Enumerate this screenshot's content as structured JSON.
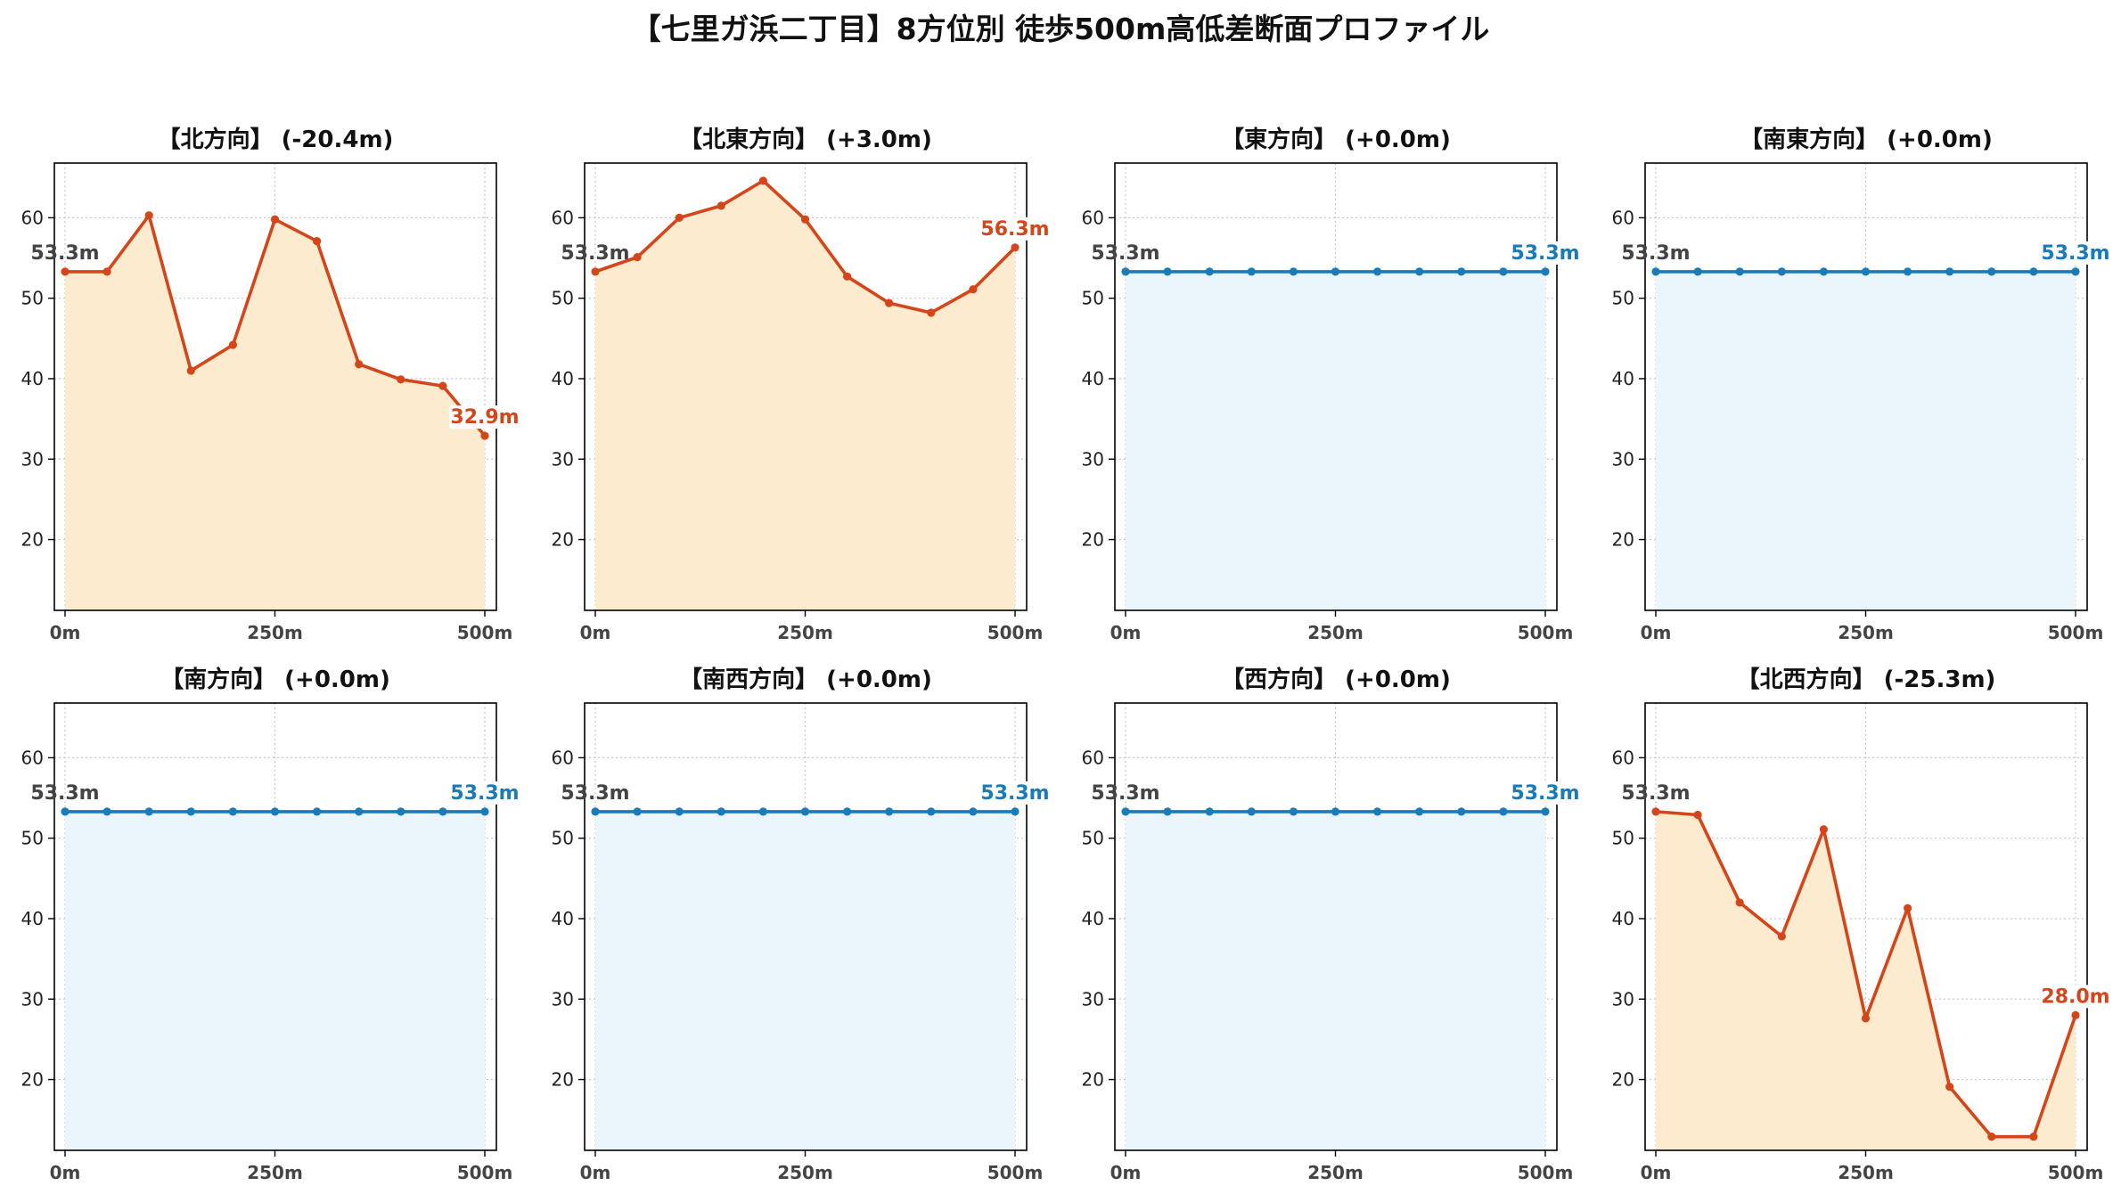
{
  "title": "【七里ガ浜二丁目】8方位別 徒歩500m高低差断面プロファイル",
  "colors": {
    "change_line": "#d4461a",
    "change_fill": "#fdebd0",
    "flat_line": "#1a7bb9",
    "flat_fill": "#eaf6fb",
    "start_label": "#444444"
  },
  "chart_data": [
    {
      "type": "area",
      "title": "【北方向】 (-20.4m)",
      "x": [
        0,
        50,
        100,
        150,
        200,
        250,
        300,
        350,
        400,
        450,
        500
      ],
      "y": [
        53.3,
        53.3,
        60.3,
        41.0,
        44.2,
        59.8,
        57.1,
        41.8,
        39.9,
        39.1,
        32.9
      ],
      "xticks": [
        "0m",
        "250m",
        "500m"
      ],
      "yticks": [
        20,
        30,
        40,
        50,
        60
      ],
      "ylim": [
        11.2,
        66.8
      ],
      "start_label": "53.3m",
      "end_label": "32.9m",
      "style": "change",
      "grid": true
    },
    {
      "type": "area",
      "title": "【北東方向】 (+3.0m)",
      "x": [
        0,
        50,
        100,
        150,
        200,
        250,
        300,
        350,
        400,
        450,
        500
      ],
      "y": [
        53.3,
        55.1,
        60.0,
        61.5,
        64.6,
        59.8,
        52.7,
        49.4,
        48.2,
        51.1,
        56.3
      ],
      "xticks": [
        "0m",
        "250m",
        "500m"
      ],
      "yticks": [
        20,
        30,
        40,
        50,
        60
      ],
      "ylim": [
        11.2,
        66.8
      ],
      "start_label": "53.3m",
      "end_label": "56.3m",
      "style": "change",
      "grid": true
    },
    {
      "type": "area",
      "title": "【東方向】 (+0.0m)",
      "x": [
        0,
        50,
        100,
        150,
        200,
        250,
        300,
        350,
        400,
        450,
        500
      ],
      "y": [
        53.3,
        53.3,
        53.3,
        53.3,
        53.3,
        53.3,
        53.3,
        53.3,
        53.3,
        53.3,
        53.3
      ],
      "xticks": [
        "0m",
        "250m",
        "500m"
      ],
      "yticks": [
        20,
        30,
        40,
        50,
        60
      ],
      "ylim": [
        11.2,
        66.8
      ],
      "start_label": "53.3m",
      "end_label": "53.3m",
      "style": "flat",
      "grid": true
    },
    {
      "type": "area",
      "title": "【南東方向】 (+0.0m)",
      "x": [
        0,
        50,
        100,
        150,
        200,
        250,
        300,
        350,
        400,
        450,
        500
      ],
      "y": [
        53.3,
        53.3,
        53.3,
        53.3,
        53.3,
        53.3,
        53.3,
        53.3,
        53.3,
        53.3,
        53.3
      ],
      "xticks": [
        "0m",
        "250m",
        "500m"
      ],
      "yticks": [
        20,
        30,
        40,
        50,
        60
      ],
      "ylim": [
        11.2,
        66.8
      ],
      "start_label": "53.3m",
      "end_label": "53.3m",
      "style": "flat",
      "grid": true
    },
    {
      "type": "area",
      "title": "【南方向】 (+0.0m)",
      "x": [
        0,
        50,
        100,
        150,
        200,
        250,
        300,
        350,
        400,
        450,
        500
      ],
      "y": [
        53.3,
        53.3,
        53.3,
        53.3,
        53.3,
        53.3,
        53.3,
        53.3,
        53.3,
        53.3,
        53.3
      ],
      "xticks": [
        "0m",
        "250m",
        "500m"
      ],
      "yticks": [
        20,
        30,
        40,
        50,
        60
      ],
      "ylim": [
        11.2,
        66.8
      ],
      "start_label": "53.3m",
      "end_label": "53.3m",
      "style": "flat",
      "grid": true
    },
    {
      "type": "area",
      "title": "【南西方向】 (+0.0m)",
      "x": [
        0,
        50,
        100,
        150,
        200,
        250,
        300,
        350,
        400,
        450,
        500
      ],
      "y": [
        53.3,
        53.3,
        53.3,
        53.3,
        53.3,
        53.3,
        53.3,
        53.3,
        53.3,
        53.3,
        53.3
      ],
      "xticks": [
        "0m",
        "250m",
        "500m"
      ],
      "yticks": [
        20,
        30,
        40,
        50,
        60
      ],
      "ylim": [
        11.2,
        66.8
      ],
      "start_label": "53.3m",
      "end_label": "53.3m",
      "style": "flat",
      "grid": true
    },
    {
      "type": "area",
      "title": "【西方向】 (+0.0m)",
      "x": [
        0,
        50,
        100,
        150,
        200,
        250,
        300,
        350,
        400,
        450,
        500
      ],
      "y": [
        53.3,
        53.3,
        53.3,
        53.3,
        53.3,
        53.3,
        53.3,
        53.3,
        53.3,
        53.3,
        53.3
      ],
      "xticks": [
        "0m",
        "250m",
        "500m"
      ],
      "yticks": [
        20,
        30,
        40,
        50,
        60
      ],
      "ylim": [
        11.2,
        66.8
      ],
      "start_label": "53.3m",
      "end_label": "53.3m",
      "style": "flat",
      "grid": true
    },
    {
      "type": "area",
      "title": "【北西方向】 (-25.3m)",
      "x": [
        0,
        50,
        100,
        150,
        200,
        250,
        300,
        350,
        400,
        450,
        500
      ],
      "y": [
        53.3,
        52.9,
        42.0,
        37.8,
        51.1,
        27.6,
        41.3,
        19.1,
        12.9,
        12.9,
        28.0
      ],
      "xticks": [
        "0m",
        "250m",
        "500m"
      ],
      "yticks": [
        20,
        30,
        40,
        50,
        60
      ],
      "ylim": [
        11.2,
        66.8
      ],
      "start_label": "53.3m",
      "end_label": "28.0m",
      "style": "change",
      "grid": true
    }
  ]
}
